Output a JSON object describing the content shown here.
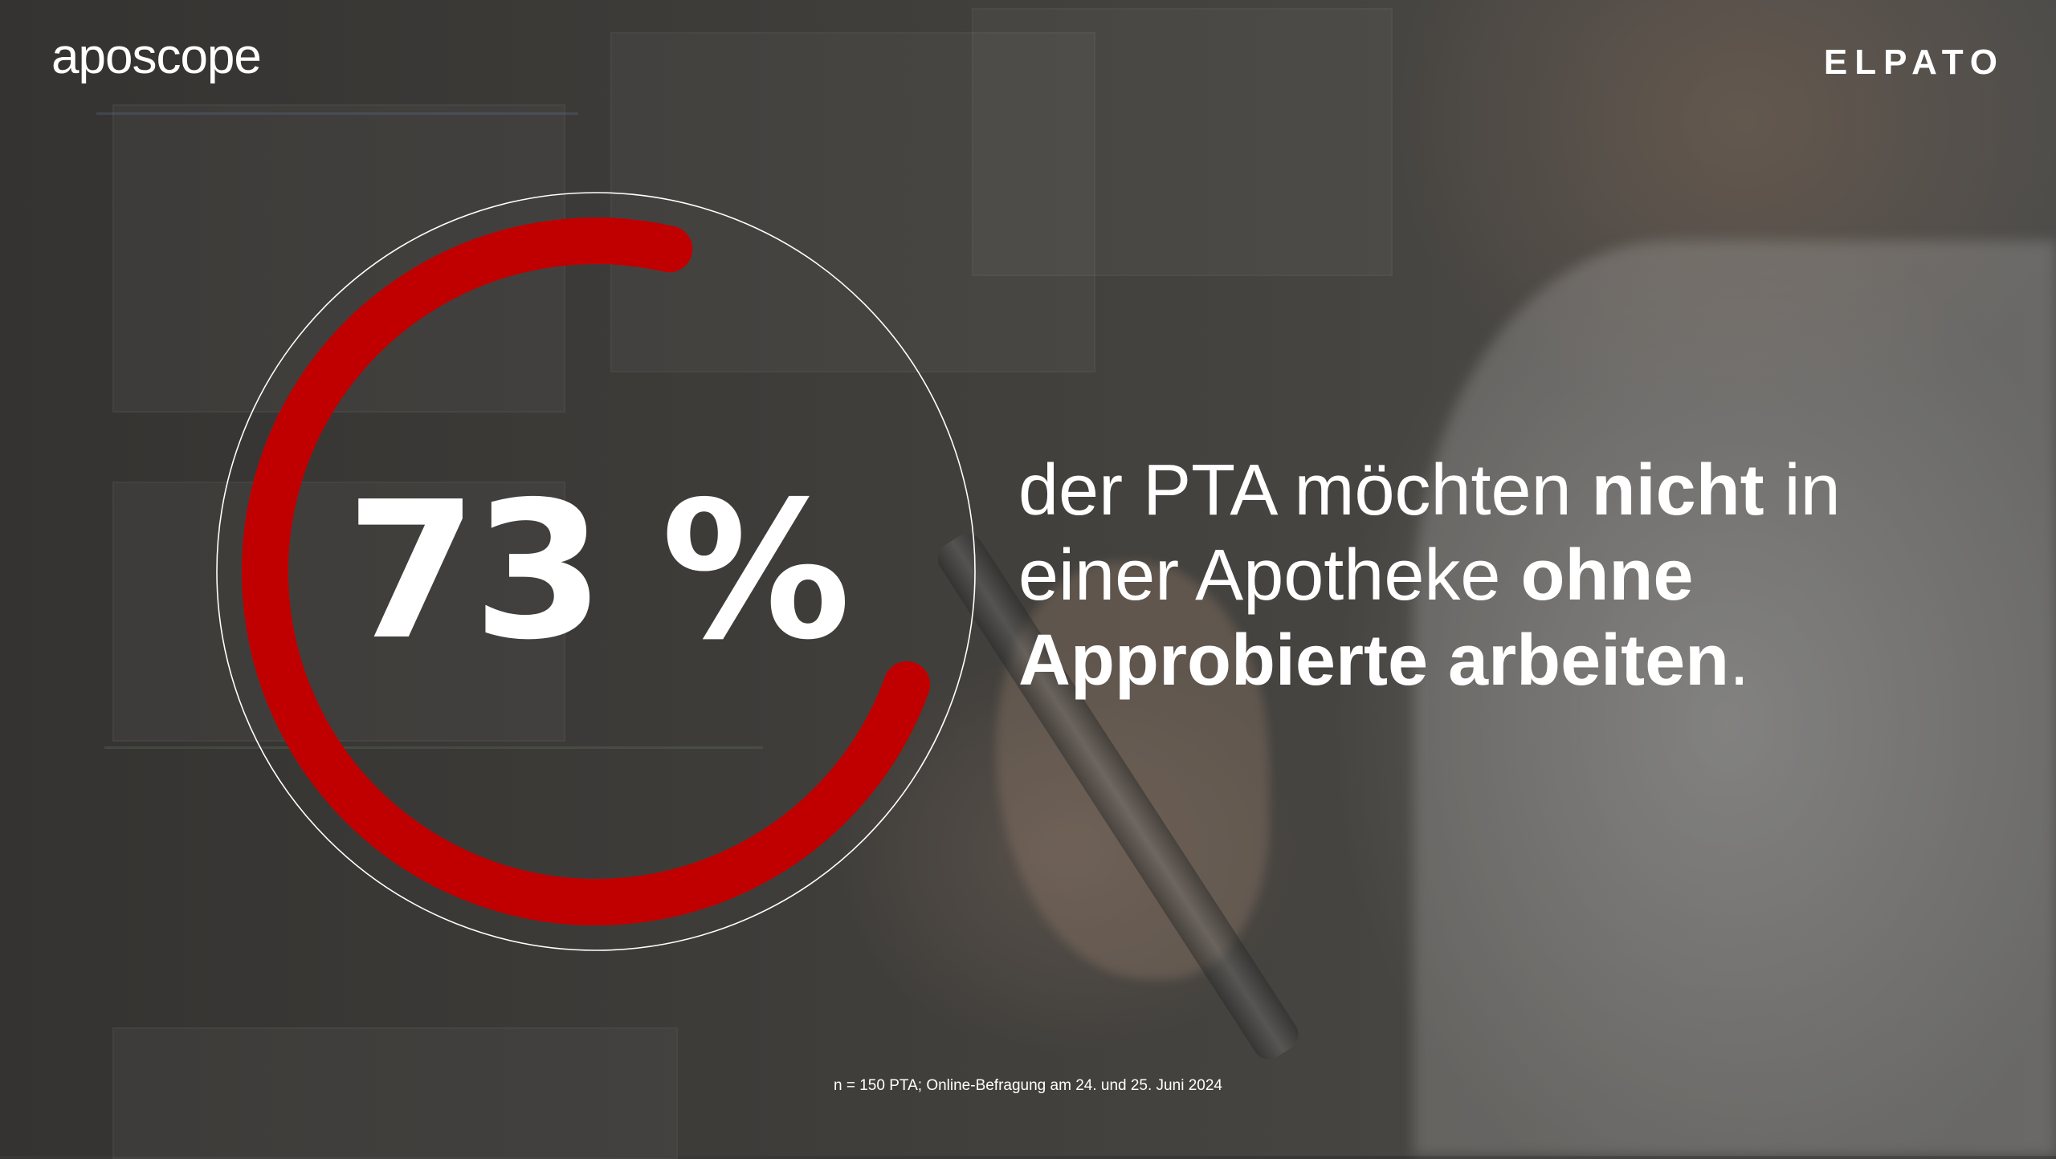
{
  "branding": {
    "left_logo": "aposcope",
    "right_logo": "ELPATO"
  },
  "colors": {
    "accent": "#c00000",
    "text": "#ffffff",
    "ring_outline": "#ffffff"
  },
  "chart_data": {
    "type": "pie",
    "categories": [
      "der PTA möchten nicht in einer Apotheke ohne Approbierte arbeiten"
    ],
    "values": [
      73
    ],
    "unit": "%",
    "value_label": "73 %"
  },
  "headline": {
    "part1": "der PTA möchten ",
    "part2_bold": "nicht",
    "part3": " in einer Apotheke ",
    "part4_bold": "ohne Approbierte arbeiten",
    "part5": "."
  },
  "footnote": "n = 150 PTA; Online-Befragung am 24. und 25. Juni 2024"
}
